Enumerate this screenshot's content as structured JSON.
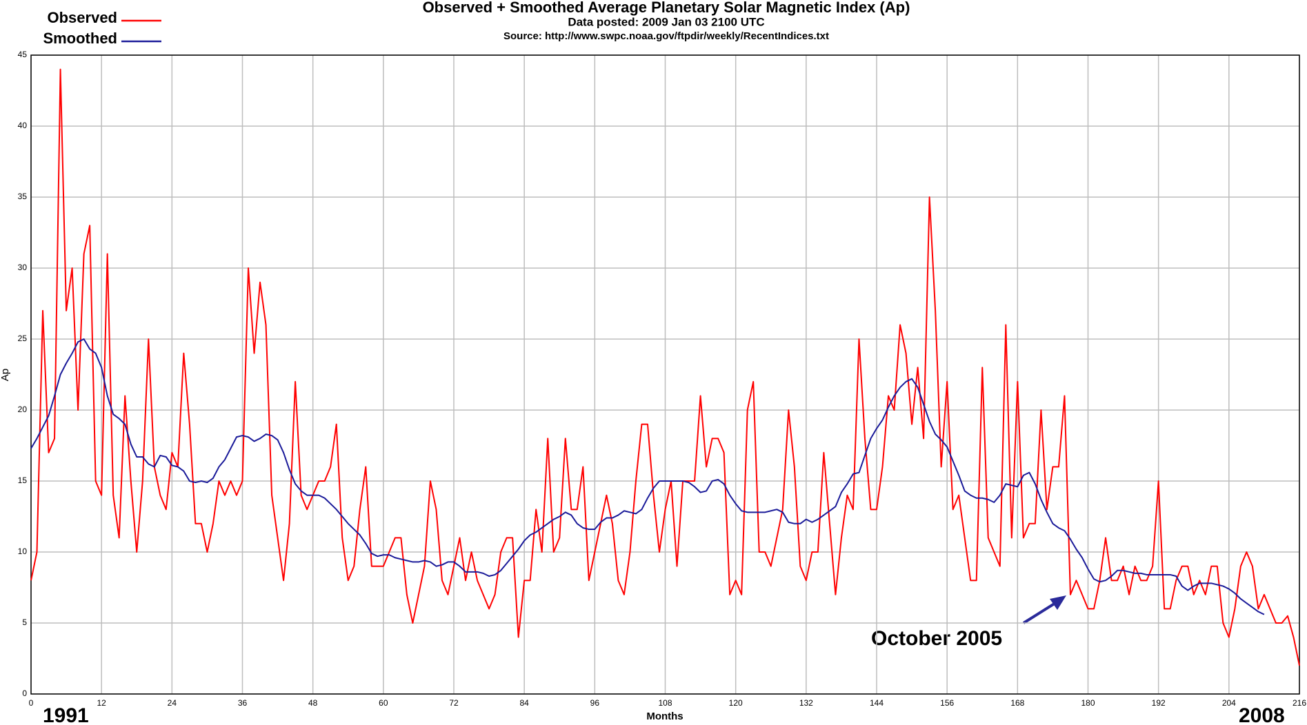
{
  "chart_data": {
    "type": "line",
    "title": "Observed + Smoothed Average Planetary Solar Magnetic Index (Ap)",
    "subtitle": "Data posted: 2009 Jan 03 2100 UTC",
    "source": "Source: http://www.swpc.noaa.gov/ftpdir/weekly/RecentIndices.txt",
    "x_label": "Months",
    "y_label": "Ap",
    "start_label": "1991",
    "end_label": "2008",
    "annotation": "October 2005",
    "xlim": [
      0,
      216
    ],
    "ylim": [
      0,
      45
    ],
    "xticks": [
      0,
      12,
      24,
      36,
      48,
      60,
      72,
      84,
      96,
      108,
      120,
      132,
      144,
      156,
      168,
      180,
      192,
      204,
      216
    ],
    "yticks": [
      0,
      5,
      10,
      15,
      20,
      25,
      30,
      35,
      40,
      45
    ],
    "grid": true,
    "x": [
      0,
      1,
      2,
      3,
      4,
      5,
      6,
      7,
      8,
      9,
      10,
      11,
      12,
      13,
      14,
      15,
      16,
      17,
      18,
      19,
      20,
      21,
      22,
      23,
      24,
      25,
      26,
      27,
      28,
      29,
      30,
      31,
      32,
      33,
      34,
      35,
      36,
      37,
      38,
      39,
      40,
      41,
      42,
      43,
      44,
      45,
      46,
      47,
      48,
      49,
      50,
      51,
      52,
      53,
      54,
      55,
      56,
      57,
      58,
      59,
      60,
      61,
      62,
      63,
      64,
      65,
      66,
      67,
      68,
      69,
      70,
      71,
      72,
      73,
      74,
      75,
      76,
      77,
      78,
      79,
      80,
      81,
      82,
      83,
      84,
      85,
      86,
      87,
      88,
      89,
      90,
      91,
      92,
      93,
      94,
      95,
      96,
      97,
      98,
      99,
      100,
      101,
      102,
      103,
      104,
      105,
      106,
      107,
      108,
      109,
      110,
      111,
      112,
      113,
      114,
      115,
      116,
      117,
      118,
      119,
      120,
      121,
      122,
      123,
      124,
      125,
      126,
      127,
      128,
      129,
      130,
      131,
      132,
      133,
      134,
      135,
      136,
      137,
      138,
      139,
      140,
      141,
      142,
      143,
      144,
      145,
      146,
      147,
      148,
      149,
      150,
      151,
      152,
      153,
      154,
      155,
      156,
      157,
      158,
      159,
      160,
      161,
      162,
      163,
      164,
      165,
      166,
      167,
      168,
      169,
      170,
      171,
      172,
      173,
      174,
      175,
      176,
      177,
      178,
      179,
      180,
      181,
      182,
      183,
      184,
      185,
      186,
      187,
      188,
      189,
      190,
      191,
      192,
      193,
      194,
      195,
      196,
      197,
      198,
      199,
      200,
      201,
      202,
      203,
      204,
      205,
      206,
      207,
      208,
      209,
      210,
      211,
      212,
      213,
      214,
      215,
      216
    ],
    "series": [
      {
        "name": "Observed",
        "color": "#ff0000",
        "values": [
          8,
          10,
          27,
          17,
          18,
          44,
          27,
          30,
          20,
          31,
          33,
          15,
          14,
          31,
          14,
          11,
          21,
          15,
          10,
          15,
          25,
          16,
          14,
          13,
          17,
          16,
          24,
          19,
          12,
          12,
          10,
          12,
          15,
          14,
          15,
          14,
          15,
          30,
          24,
          29,
          26,
          14,
          11,
          8,
          12,
          22,
          14,
          13,
          14,
          15,
          15,
          16,
          19,
          11,
          8,
          9,
          13,
          16,
          9,
          9,
          9,
          10,
          11,
          11,
          7,
          5,
          7,
          9,
          15,
          13,
          8,
          7,
          9,
          11,
          8,
          10,
          8,
          7,
          6,
          7,
          10,
          11,
          11,
          4,
          8,
          8,
          13,
          10,
          18,
          10,
          11,
          18,
          13,
          13,
          16,
          8,
          10,
          12,
          14,
          12,
          8,
          7,
          10,
          15,
          19,
          19,
          14,
          10,
          13,
          15,
          9,
          15,
          15,
          15,
          21,
          16,
          18,
          18,
          17,
          7,
          8,
          7,
          20,
          22,
          10,
          10,
          9,
          11,
          13,
          20,
          16,
          9,
          8,
          10,
          10,
          17,
          12,
          7,
          11,
          14,
          13,
          25,
          18,
          13,
          13,
          16,
          21,
          20,
          26,
          24,
          19,
          23,
          18,
          35,
          27,
          16,
          22,
          13,
          14,
          11,
          8,
          8,
          23,
          11,
          10,
          9,
          26,
          11,
          22,
          11,
          12,
          12,
          20,
          13,
          16,
          16,
          21,
          7,
          8,
          7,
          6,
          6,
          8,
          11,
          8,
          8,
          9,
          7,
          9,
          8,
          8,
          9,
          15,
          6,
          6,
          8,
          9,
          9,
          7,
          8,
          7,
          9,
          9,
          5,
          4,
          6,
          9,
          10,
          9,
          6,
          7,
          6,
          5,
          5,
          5.5,
          4,
          2
        ]
      },
      {
        "name": "Smoothed",
        "color": "#1a1a99",
        "values": [
          17.3,
          18,
          18.8,
          19.6,
          21,
          22.5,
          23.3,
          24,
          24.8,
          25,
          24.3,
          24,
          23,
          21,
          19.7,
          19.4,
          19,
          17.6,
          16.7,
          16.7,
          16.2,
          16,
          16.8,
          16.7,
          16.1,
          16,
          15.7,
          15,
          14.9,
          15,
          14.9,
          15.2,
          16,
          16.5,
          17.3,
          18.1,
          18.2,
          18.1,
          17.8,
          18,
          18.3,
          18.2,
          17.9,
          17,
          15.8,
          14.8,
          14.3,
          14,
          14,
          14,
          13.8,
          13.4,
          13,
          12.5,
          12,
          11.6,
          11.2,
          10.6,
          9.9,
          9.7,
          9.8,
          9.8,
          9.6,
          9.5,
          9.4,
          9.3,
          9.3,
          9.4,
          9.3,
          9,
          9.1,
          9.3,
          9.3,
          9,
          8.6,
          8.6,
          8.6,
          8.5,
          8.3,
          8.4,
          8.7,
          9.2,
          9.7,
          10.2,
          10.8,
          11.2,
          11.4,
          11.7,
          12,
          12.3,
          12.5,
          12.8,
          12.6,
          12,
          11.7,
          11.6,
          11.6,
          12.1,
          12.4,
          12.4,
          12.6,
          12.9,
          12.8,
          12.7,
          13,
          13.8,
          14.5,
          15,
          15,
          15,
          15,
          15,
          14.9,
          14.6,
          14.2,
          14.3,
          15,
          15.1,
          14.8,
          14,
          13.4,
          12.9,
          12.8,
          12.8,
          12.8,
          12.8,
          12.9,
          13,
          12.8,
          12.1,
          12,
          12,
          12.3,
          12.1,
          12.3,
          12.6,
          12.9,
          13.2,
          14.2,
          14.8,
          15.5,
          15.6,
          16.8,
          18,
          18.7,
          19.3,
          20.2,
          21,
          21.6,
          22,
          22.2,
          21.6,
          20.4,
          19.2,
          18.3,
          17.9,
          17.4,
          16.4,
          15.4,
          14.3,
          14,
          13.8,
          13.8,
          13.7,
          13.5,
          14,
          14.8,
          14.7,
          14.6,
          15.4,
          15.6,
          14.8,
          13.7,
          12.8,
          12,
          11.7,
          11.5,
          10.9,
          10.2,
          9.6,
          8.8,
          8.1,
          7.9,
          8,
          8.3,
          8.7,
          8.7,
          8.6,
          8.5,
          8.5,
          8.4,
          8.4,
          8.4,
          8.4,
          8.4,
          8.3,
          7.6,
          7.3,
          7.6,
          7.8,
          7.8,
          7.8,
          7.7,
          7.6,
          7.4,
          7.1,
          6.7,
          6.4,
          6.1,
          5.8,
          5.6,
          null,
          null,
          null,
          null,
          null,
          null
        ]
      }
    ]
  }
}
